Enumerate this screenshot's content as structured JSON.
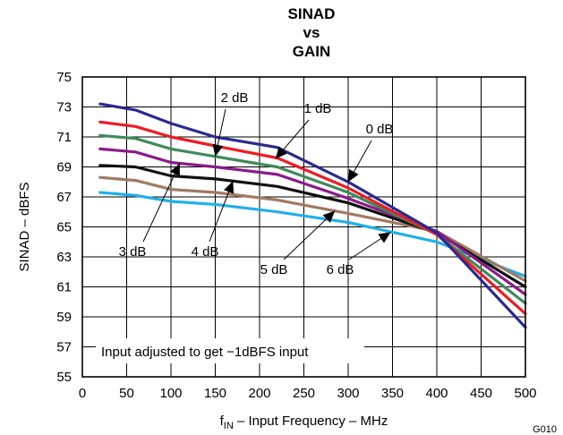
{
  "chart_data": {
    "type": "line",
    "title": [
      "SINAD",
      "vs",
      "GAIN"
    ],
    "xlabel": {
      "prefix": "f",
      "sub": "IN",
      "rest": " – Input Frequency – MHz"
    },
    "ylabel": "SINAD – dBFS",
    "xlim": [
      0,
      500
    ],
    "ylim": [
      55,
      75
    ],
    "xticks": [
      0,
      50,
      100,
      150,
      200,
      250,
      300,
      350,
      400,
      450,
      500
    ],
    "yticks": [
      55,
      57,
      59,
      61,
      63,
      65,
      67,
      69,
      71,
      73,
      75
    ],
    "grid": true,
    "figure_id": "G010",
    "note": "Input adjusted to get −1dBFS input",
    "series": [
      {
        "name": "0 dB",
        "color": "#2a2a90",
        "x": [
          20,
          60,
          100,
          150,
          220,
          300,
          400,
          500
        ],
        "y": [
          73.2,
          72.8,
          71.9,
          71.0,
          70.3,
          68.0,
          64.6,
          58.3
        ]
      },
      {
        "name": "1 dB",
        "color": "#ee1c24",
        "x": [
          20,
          60,
          100,
          150,
          220,
          300,
          400,
          500
        ],
        "y": [
          72.0,
          71.7,
          71.0,
          70.4,
          69.6,
          67.6,
          64.5,
          59.2
        ]
      },
      {
        "name": "2 dB",
        "color": "#3f8a5a",
        "x": [
          20,
          60,
          100,
          150,
          220,
          300,
          400,
          500
        ],
        "y": [
          71.1,
          70.9,
          70.2,
          69.7,
          69.0,
          67.3,
          64.5,
          59.9
        ]
      },
      {
        "name": "3 dB",
        "color": "#8b1a8a",
        "x": [
          20,
          60,
          100,
          150,
          220,
          300,
          400,
          500
        ],
        "y": [
          70.2,
          70.0,
          69.3,
          69.0,
          68.5,
          66.9,
          64.7,
          60.5
        ]
      },
      {
        "name": "4 dB",
        "color": "#111111",
        "x": [
          20,
          60,
          100,
          150,
          220,
          300,
          400,
          500
        ],
        "y": [
          69.1,
          69.0,
          68.4,
          68.2,
          67.7,
          66.6,
          64.6,
          61.0
        ]
      },
      {
        "name": "5 dB",
        "color": "#a07a62",
        "x": [
          20,
          60,
          100,
          150,
          220,
          300,
          400,
          500
        ],
        "y": [
          68.3,
          68.1,
          67.5,
          67.3,
          66.8,
          65.9,
          64.7,
          61.4
        ]
      },
      {
        "name": "6 dB",
        "color": "#22b0e8",
        "x": [
          20,
          60,
          100,
          150,
          220,
          300,
          400,
          500
        ],
        "y": [
          67.3,
          67.1,
          66.7,
          66.5,
          66.0,
          65.3,
          64.0,
          61.7
        ]
      }
    ]
  }
}
